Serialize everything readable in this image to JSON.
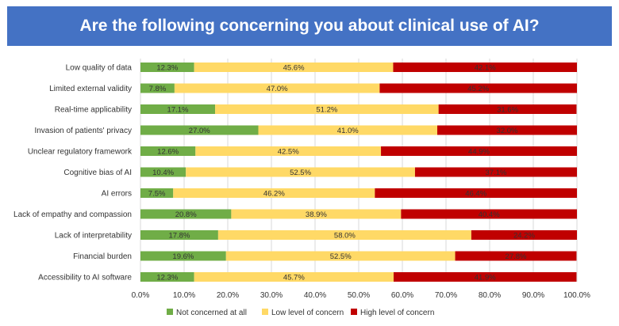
{
  "chart_data": {
    "type": "bar",
    "orientation": "horizontal",
    "stacked": true,
    "percent_stacked": true,
    "title": "Are the following concerning you about clinical use of AI?",
    "categories": [
      "Low quality of data",
      "Limited external validity",
      "Real-time applicability",
      "Invasion of patients' privacy",
      "Unclear regulatory framework",
      "Cognitive bias of AI",
      "AI errors",
      "Lack of empathy and compassion",
      "Lack of interpretability",
      "Financial burden",
      "Accessibility to AI software"
    ],
    "series": [
      {
        "name": "Not concerned at all",
        "color": "#70ad47",
        "values": [
          12.3,
          7.8,
          17.1,
          27.0,
          12.6,
          10.4,
          7.5,
          20.8,
          17.8,
          19.6,
          12.3
        ],
        "labels": [
          "12.3%",
          "7.8%",
          "17.1%",
          "27.0%",
          "12.6%",
          "10.4%",
          "7.5%",
          "20.8%",
          "17.8%",
          "19.6%",
          "12.3%"
        ]
      },
      {
        "name": "Low level of concern",
        "color": "#ffd966",
        "values": [
          45.6,
          47.0,
          51.2,
          41.0,
          42.5,
          52.5,
          46.2,
          38.9,
          58.0,
          52.5,
          45.7
        ],
        "labels": [
          "45.6%",
          "47.0%",
          "51.2%",
          "41.0%",
          "42.5%",
          "52.5%",
          "46.2%",
          "38.9%",
          "58.0%",
          "52.5%",
          "45.7%"
        ]
      },
      {
        "name": "High level of concern",
        "color": "#c00000",
        "values": [
          42.1,
          45.2,
          31.6,
          32.0,
          44.9,
          37.1,
          46.4,
          40.4,
          24.2,
          27.8,
          41.9
        ],
        "labels": [
          "42.1%",
          "45.2%",
          "31.6%",
          "32.0%",
          "44.9%",
          "37.1%",
          "46.4%",
          "40.4%",
          "24.2%",
          "27.8%",
          "41.9%"
        ]
      }
    ],
    "xlim": [
      0,
      100
    ],
    "xticks": [
      "0.0%",
      "10.0%",
      "20.0%",
      "30.0%",
      "40.0%",
      "50.0%",
      "60.0%",
      "70.0%",
      "80.0%",
      "90.0%",
      "100.0%"
    ],
    "grid": true,
    "legend": "bottom"
  }
}
